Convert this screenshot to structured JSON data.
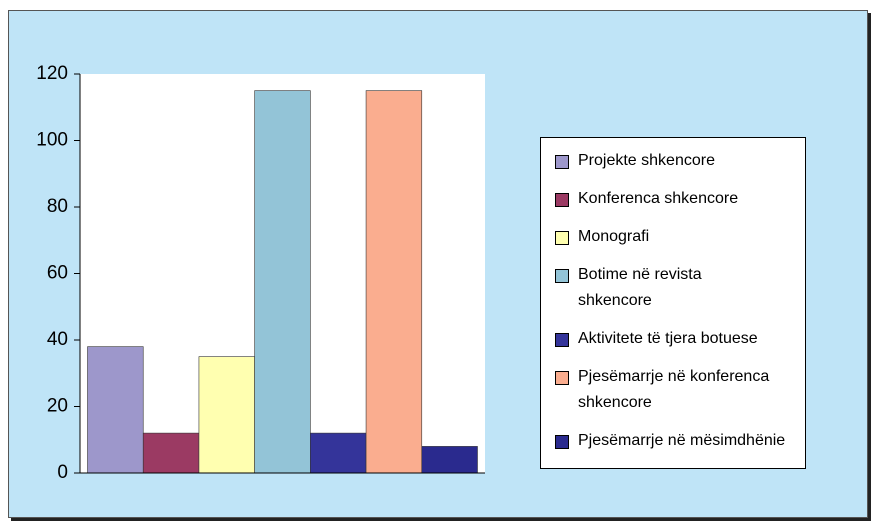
{
  "chart_data": {
    "type": "bar",
    "categories": [
      null
    ],
    "series": [
      {
        "name": "Projekte shkencore",
        "color": "#9d97cb",
        "values": [
          38
        ]
      },
      {
        "name": "Konferenca shkencore",
        "color": "#9b3a63",
        "values": [
          12
        ]
      },
      {
        "name": "Monografi",
        "color": "#ffffb0",
        "values": [
          35
        ]
      },
      {
        "name": "Botime në revista shkencore",
        "color": "#93c4d7",
        "values": [
          115
        ]
      },
      {
        "name": "Aktivitete të tjera botuese",
        "color": "#34349a",
        "values": [
          12
        ]
      },
      {
        "name": "Pjesëmarrje në konferenca shkencore",
        "color": "#faad8f",
        "values": [
          115
        ]
      },
      {
        "name": "Pjesëmarrje në mësimdhënie",
        "color": "#2a2a8e",
        "values": [
          8
        ]
      }
    ],
    "ylim": [
      0,
      120
    ],
    "yticks": [
      0,
      20,
      40,
      60,
      80,
      100,
      120
    ],
    "grid": false,
    "legend": "right"
  }
}
